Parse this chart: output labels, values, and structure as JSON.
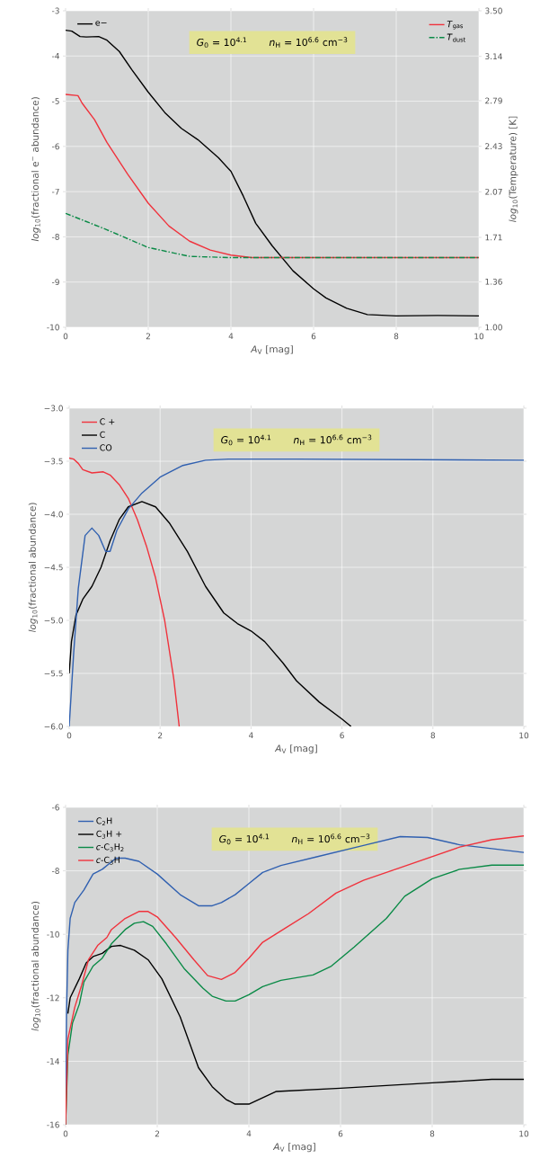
{
  "chart_data": [
    {
      "type": "line",
      "xlabel": "*A*$_{V}$ [mag]",
      "ylabel": "*log*$_{10}$(fractional e$^{−}$ abundance)",
      "y2label": "*log*$_{10}$(Temperature) [K]",
      "annotations": [
        "*G*$_{0}$ = 10$^{4.1}$",
        "*n*$_{H}$ = 10$^{6.6}$ cm$^{−3}$"
      ],
      "xlim": [
        0,
        10
      ],
      "xticks": [
        0,
        2,
        4,
        6,
        8,
        10
      ],
      "ylim": [
        -10,
        -3
      ],
      "yticks": [
        -10,
        -9,
        -8,
        -7,
        -6,
        -5,
        -4,
        -3
      ],
      "y2lim": [
        1.0,
        3.5
      ],
      "y2ticks": [
        {
          "value": 1.0,
          "label": "1.00"
        },
        {
          "value": 1.36,
          "label": "1.36"
        },
        {
          "value": 1.71,
          "label": "1.71"
        },
        {
          "value": 2.07,
          "label": "2.07"
        },
        {
          "value": 2.43,
          "label": "2.43"
        },
        {
          "value": 2.79,
          "label": "2.79"
        },
        {
          "value": 3.14,
          "label": "3.14"
        },
        {
          "value": 3.5,
          "label": "3.50"
        }
      ],
      "grid": true,
      "legend": "top left",
      "series": [
        {
          "name": "e−",
          "color": "#000000",
          "x": [
            0,
            0.15,
            0.35,
            0.5,
            0.8,
            1,
            1.3,
            1.6,
            2,
            2.4,
            2.8,
            3.2,
            3.7,
            4,
            4.3,
            4.6,
            5,
            5.5,
            6,
            6.3,
            6.8,
            7.3,
            8,
            9,
            10
          ],
          "values": [
            -3.43,
            -3.45,
            -3.57,
            -3.58,
            -3.57,
            -3.65,
            -3.9,
            -4.3,
            -4.8,
            -5.25,
            -5.6,
            -5.85,
            -6.25,
            -6.55,
            -7.1,
            -7.7,
            -8.2,
            -8.75,
            -9.15,
            -9.35,
            -9.58,
            -9.72,
            -9.75,
            -9.74,
            -9.75
          ]
        },
        {
          "name": "*T*$_{gas}$",
          "color": "#f0323c",
          "axis": "y2",
          "x": [
            0,
            0.3,
            0.4,
            0.7,
            1,
            1.5,
            2,
            2.5,
            3,
            3.5,
            4,
            4.5,
            5,
            10
          ],
          "values": [
            2.84,
            2.83,
            2.77,
            2.64,
            2.46,
            2.21,
            1.98,
            1.8,
            1.68,
            1.61,
            1.57,
            1.55,
            1.55,
            1.55
          ]
        },
        {
          "name": "*T*$_{dust}$",
          "color": "#0a8a46",
          "axis": "y2",
          "line_style": "dashdot",
          "x": [
            0,
            1,
            2,
            3,
            4,
            10
          ],
          "values": [
            1.9,
            1.77,
            1.63,
            1.56,
            1.55,
            1.55
          ]
        }
      ]
    },
    {
      "type": "line",
      "xlabel": "*A*$_{V}$ [mag]",
      "ylabel": "*log*$_{10}$(fractional abundance)",
      "annotations": [
        "*G*$_{0}$ = 10$^{4.1}$",
        "*n*$_{H}$ = 10$^{6.6}$ cm$^{−3}$"
      ],
      "xlim": [
        0,
        10
      ],
      "xticks": [
        0,
        2,
        4,
        6,
        8,
        10
      ],
      "ylim": [
        -6,
        -3
      ],
      "yticks": [
        {
          "value": -6,
          "label": "−6.0"
        },
        {
          "value": -5.5,
          "label": "−5.5"
        },
        {
          "value": -5,
          "label": "−5.0"
        },
        {
          "value": -4.5,
          "label": "−4.5"
        },
        {
          "value": -4,
          "label": "−4.0"
        },
        {
          "value": -3.5,
          "label": "−3.5"
        },
        {
          "value": -3,
          "label": "−3.0"
        }
      ],
      "grid": true,
      "legend": "top left",
      "series": [
        {
          "name": "C +",
          "color": "#f0323c",
          "x": [
            0,
            0.1,
            0.2,
            0.3,
            0.5,
            0.75,
            0.9,
            1.1,
            1.3,
            1.5,
            1.7,
            1.9,
            2.1,
            2.3,
            2.42
          ],
          "values": [
            -3.47,
            -3.48,
            -3.52,
            -3.58,
            -3.61,
            -3.6,
            -3.63,
            -3.72,
            -3.85,
            -4.05,
            -4.3,
            -4.6,
            -5.0,
            -5.55,
            -6.0
          ]
        },
        {
          "name": "C",
          "color": "#000000",
          "x": [
            0,
            0.05,
            0.15,
            0.3,
            0.5,
            0.7,
            0.9,
            1.1,
            1.3,
            1.6,
            1.9,
            2.2,
            2.6,
            3,
            3.4,
            3.7,
            4,
            4.3,
            4.7,
            5,
            5.5,
            6,
            6.2
          ],
          "values": [
            -5.5,
            -5.2,
            -4.95,
            -4.8,
            -4.68,
            -4.5,
            -4.25,
            -4.05,
            -3.93,
            -3.88,
            -3.93,
            -4.08,
            -4.35,
            -4.68,
            -4.93,
            -5.03,
            -5.1,
            -5.2,
            -5.4,
            -5.57,
            -5.77,
            -5.93,
            -6.0
          ]
        },
        {
          "name": "CO",
          "color": "#3060b0",
          "x": [
            0,
            0.1,
            0.2,
            0.35,
            0.5,
            0.65,
            0.8,
            0.9,
            1.05,
            1.3,
            1.6,
            2,
            2.5,
            3,
            3.5,
            5,
            10
          ],
          "values": [
            -6.0,
            -5.3,
            -4.7,
            -4.2,
            -4.13,
            -4.2,
            -4.35,
            -4.35,
            -4.15,
            -3.95,
            -3.8,
            -3.65,
            -3.54,
            -3.49,
            -3.48,
            -3.48,
            -3.49
          ]
        }
      ]
    },
    {
      "type": "line",
      "xlabel": "*A*$_{V}$ [mag]",
      "ylabel": "*log*$_{10}$(fractional abundance)",
      "annotations": [
        "*G*$_{0}$ = 10$^{4.1}$",
        "*n*$_{H}$ = 10$^{6.6}$ cm$^{−3}$"
      ],
      "xlim": [
        0,
        10
      ],
      "xticks": [
        0,
        2,
        4,
        6,
        8,
        10
      ],
      "ylim": [
        -16,
        -6
      ],
      "yticks": [
        -16,
        -14,
        -12,
        -10,
        -8,
        -6
      ],
      "grid": true,
      "legend": "top left",
      "series": [
        {
          "name": "C$_{2}$H",
          "color": "#3060b0",
          "x": [
            0,
            0.02,
            0.05,
            0.1,
            0.2,
            0.4,
            0.6,
            0.8,
            1.1,
            1.3,
            1.6,
            2,
            2.5,
            2.9,
            3.2,
            3.4,
            3.7,
            4,
            4.3,
            4.7,
            5.5,
            6.5,
            7.3,
            7.9,
            8.6,
            9.3,
            10
          ],
          "values": [
            -16,
            -12.5,
            -10.5,
            -9.5,
            -9.0,
            -8.6,
            -8.1,
            -7.95,
            -7.6,
            -7.6,
            -7.7,
            -8.1,
            -8.75,
            -9.1,
            -9.1,
            -9.0,
            -8.75,
            -8.4,
            -8.05,
            -7.83,
            -7.55,
            -7.2,
            -6.92,
            -6.95,
            -7.18,
            -7.3,
            -7.42
          ]
        },
        {
          "name": "C$_{3}$H +",
          "color": "#000000",
          "x": [
            0.05,
            0.1,
            0.3,
            0.45,
            0.6,
            0.8,
            1,
            1.2,
            1.5,
            1.8,
            2.1,
            2.5,
            2.9,
            3.2,
            3.5,
            3.7,
            4,
            4.6,
            6,
            8,
            9.3,
            10
          ],
          "values": [
            -12.5,
            -12.0,
            -11.4,
            -10.9,
            -10.7,
            -10.6,
            -10.38,
            -10.35,
            -10.5,
            -10.8,
            -11.4,
            -12.6,
            -14.2,
            -14.8,
            -15.2,
            -15.35,
            -15.35,
            -14.95,
            -14.85,
            -14.68,
            -14.57,
            -14.57
          ]
        },
        {
          "name": "*c*-C$_{3}$H$_{2}$",
          "color": "#0a8a46",
          "x": [
            0,
            0.05,
            0.15,
            0.3,
            0.4,
            0.6,
            0.8,
            1,
            1.3,
            1.5,
            1.7,
            1.9,
            2.2,
            2.6,
            3,
            3.2,
            3.5,
            3.7,
            4,
            4.3,
            4.7,
            5.4,
            5.8,
            6.3,
            7,
            7.4,
            8,
            8.6,
            9.3,
            10
          ],
          "values": [
            -16,
            -13.8,
            -12.8,
            -12.2,
            -11.5,
            -11.0,
            -10.75,
            -10.3,
            -9.85,
            -9.65,
            -9.6,
            -9.75,
            -10.3,
            -11.1,
            -11.7,
            -11.95,
            -12.1,
            -12.1,
            -11.9,
            -11.65,
            -11.45,
            -11.28,
            -11.0,
            -10.4,
            -9.5,
            -8.8,
            -8.25,
            -7.95,
            -7.82,
            -7.82
          ]
        },
        {
          "name": "*c*-C$_{3}$H",
          "color": "#f0323c",
          "x": [
            0,
            0.05,
            0.2,
            0.35,
            0.5,
            0.7,
            0.9,
            1,
            1.3,
            1.6,
            1.8,
            2,
            2.4,
            2.8,
            3.1,
            3.4,
            3.7,
            4,
            4.3,
            4.8,
            5.3,
            5.9,
            6.5,
            7.2,
            7.9,
            8.6,
            9.3,
            10
          ],
          "values": [
            -16,
            -13.3,
            -12.3,
            -11.6,
            -10.8,
            -10.35,
            -10.1,
            -9.85,
            -9.5,
            -9.28,
            -9.28,
            -9.45,
            -10.1,
            -10.8,
            -11.3,
            -11.42,
            -11.2,
            -10.75,
            -10.25,
            -9.8,
            -9.35,
            -8.7,
            -8.3,
            -7.95,
            -7.6,
            -7.25,
            -7.02,
            -6.9
          ]
        }
      ]
    }
  ]
}
